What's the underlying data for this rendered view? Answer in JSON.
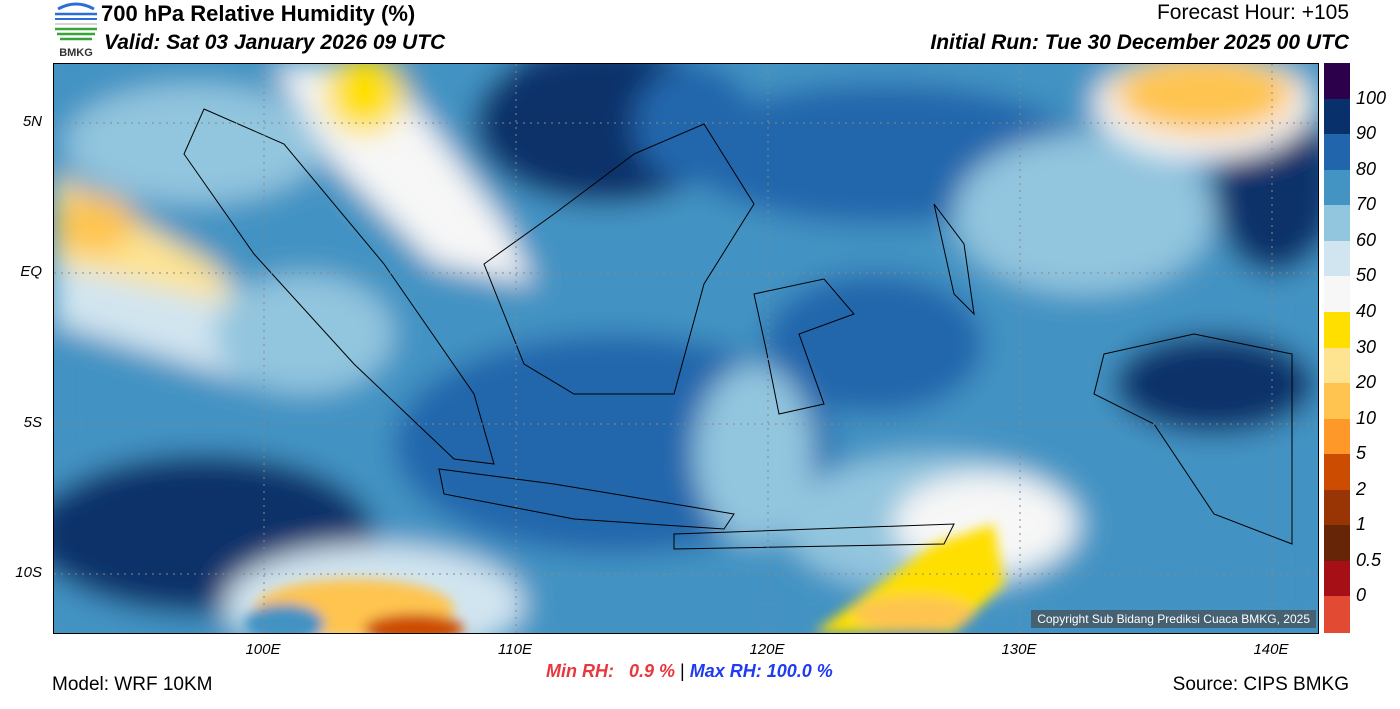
{
  "header": {
    "title": "700 hPa Relative Humidity (%)",
    "valid": "Valid: Sat 03 January 2026 09 UTC",
    "forecast_hour": "Forecast Hour: +105",
    "initial_run": "Initial Run: Tue 30 December 2025 00 UTC",
    "logo_text": "BMKG"
  },
  "map": {
    "lat_labels": [
      "5N",
      "EQ",
      "5S",
      "10S"
    ],
    "lon_labels": [
      "100E",
      "110E",
      "120E",
      "130E",
      "140E"
    ],
    "copyright": "Copyright Sub Bidang Prediksi Cuaca BMKG, 2025"
  },
  "colorbar": {
    "labels": [
      "100",
      "90",
      "80",
      "70",
      "60",
      "50",
      "40",
      "30",
      "20",
      "10",
      "5",
      "2",
      "1",
      "0.5",
      "0"
    ],
    "colors": [
      "#2d004b",
      "#08306b",
      "#2166ac",
      "#4393c3",
      "#92c5de",
      "#d1e5f0",
      "#f7f7f7",
      "#ffdf00",
      "#fee391",
      "#fec44f",
      "#fe9929",
      "#cc4c02",
      "#993404",
      "#662506",
      "#a50f15",
      "#e34a33"
    ]
  },
  "footer": {
    "model": "Model: WRF 10KM",
    "source": "Source: CIPS BMKG",
    "min_rh": "Min RH:   0.9 %",
    "separator": "|",
    "max_rh": "Max RH: 100.0 %",
    "min_color": "#e8383d",
    "max_color": "#1f3cf0"
  }
}
